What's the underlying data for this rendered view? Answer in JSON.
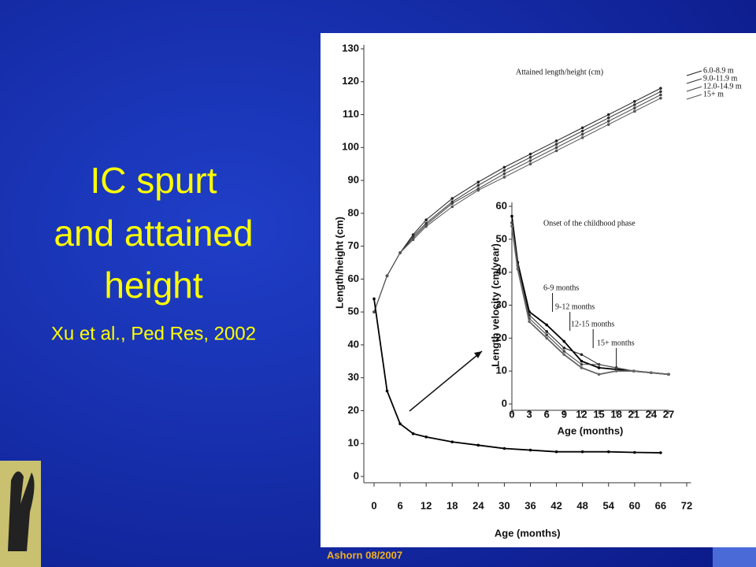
{
  "slide": {
    "title_lines": [
      "IC spurt",
      "and attained",
      "height"
    ],
    "citation": "Xu et al., Ped Res, 2002",
    "footer": "Ashorn 08/2007"
  },
  "chart_data": [
    {
      "type": "line",
      "annotation": "Attained length/height (cm)",
      "ylabel": "Length/height (cm)",
      "xlabel": "Age (months)",
      "x": [
        0,
        3,
        6,
        9,
        12,
        18,
        24,
        30,
        36,
        42,
        48,
        54,
        60,
        66
      ],
      "series": [
        {
          "name": "6.0-8.9 m",
          "color": "#222222",
          "values": [
            50,
            61,
            68,
            73.5,
            78,
            84.5,
            89.5,
            94,
            98,
            102,
            106,
            110,
            114,
            118
          ]
        },
        {
          "name": "9.0-11.9 m",
          "color": "#333333",
          "values": [
            50,
            61,
            68,
            73,
            77,
            83.5,
            88.5,
            93,
            97,
            101,
            105,
            109,
            113,
            117
          ]
        },
        {
          "name": "12.0-14.9 m",
          "color": "#444444",
          "values": [
            50,
            61,
            68,
            72.5,
            76.5,
            83,
            87.5,
            92,
            96,
            100,
            104,
            108,
            112,
            116
          ]
        },
        {
          "name": "15+ m",
          "color": "#555555",
          "values": [
            50,
            61,
            68,
            72,
            76,
            82,
            87,
            91,
            95,
            99,
            103,
            107,
            111,
            115
          ]
        },
        {
          "color": "#000000",
          "values": [
            54,
            26,
            16,
            13,
            12,
            10.5,
            9.5,
            8.5,
            8,
            7.5,
            7.5,
            7.5,
            7.3,
            7.2
          ]
        }
      ],
      "xlim": [
        -1,
        73
      ],
      "ylim": [
        0,
        130
      ],
      "xticks": [
        0,
        6,
        12,
        18,
        24,
        30,
        36,
        42,
        48,
        54,
        60,
        66,
        72
      ],
      "yticks": [
        0,
        10,
        20,
        30,
        40,
        50,
        60,
        70,
        80,
        90,
        100,
        110,
        120,
        130
      ]
    },
    {
      "type": "line",
      "title": "Onset of the childhood phase",
      "ylabel": "Length velocity (cm/year)",
      "xlabel": "Age (months)",
      "annotations": [
        "6-9 months",
        "9-12 months",
        "12-15 months",
        "15+ months"
      ],
      "x": [
        0,
        1,
        3,
        6,
        9,
        12,
        15,
        18,
        21,
        24,
        27
      ],
      "series": [
        {
          "color": "#000000",
          "values": [
            57,
            43,
            28,
            24,
            19,
            13,
            11,
            10.5,
            10,
            9.5,
            9
          ]
        },
        {
          "color": "#222222",
          "values": [
            55,
            42,
            27,
            22,
            17,
            15,
            12,
            11,
            10,
            9.5,
            9
          ]
        },
        {
          "color": "#444444",
          "values": [
            55,
            42,
            26,
            21,
            16,
            12,
            12,
            11,
            10,
            9.5,
            9
          ]
        },
        {
          "color": "#666666",
          "values": [
            54,
            41,
            25,
            20,
            15,
            11,
            9,
            10,
            10,
            9.5,
            9
          ]
        }
      ],
      "xlim": [
        0,
        27
      ],
      "ylim": [
        0,
        60
      ],
      "xticks": [
        0,
        3,
        6,
        9,
        12,
        15,
        18,
        21,
        24,
        27
      ],
      "yticks": [
        0,
        10,
        20,
        30,
        40,
        50,
        60
      ]
    }
  ]
}
